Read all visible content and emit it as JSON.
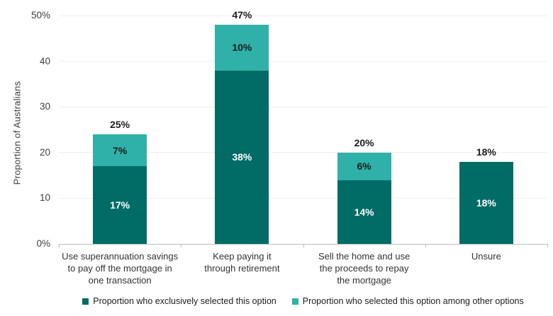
{
  "chart_data": {
    "type": "bar",
    "subtype": "stacked",
    "title": "",
    "xlabel": "",
    "ylabel": "Proportion of Australians",
    "ylim": [
      0,
      50
    ],
    "grid": "horizontal-faint",
    "legend_position": "bottom",
    "yticks": [
      {
        "value": 0,
        "label": "0%"
      },
      {
        "value": 10,
        "label": "10"
      },
      {
        "value": 20,
        "label": "20"
      },
      {
        "value": 30,
        "label": "30"
      },
      {
        "value": 40,
        "label": "40"
      },
      {
        "value": 50,
        "label": "50%"
      }
    ],
    "categories": [
      "Use superannuation savings\nto pay off the mortgage in\none transaction",
      "Keep paying it\nthrough retirement",
      "Sell the home and use\nthe proceeds to repay\nthe mortgage",
      "Unsure"
    ],
    "series": [
      {
        "name": "Proportion who exclusively selected this option",
        "color": "#016B66",
        "values": [
          17,
          38,
          14,
          18
        ],
        "labels": [
          "17%",
          "38%",
          "14%",
          "18%"
        ]
      },
      {
        "name": "Proportion who selected this option among other options",
        "color": "#2FB1A9",
        "values": [
          7,
          10,
          6,
          0
        ],
        "labels": [
          "7%",
          "10%",
          "6%",
          ""
        ]
      }
    ],
    "totals": [
      "25%",
      "47%",
      "20%",
      "18%"
    ],
    "colors": {
      "exclusive": "#016B66",
      "among": "#2FB1A9",
      "axis_line": "#bdbdbd",
      "gridline": "#f0efef",
      "label_dark": "#1d1d1b",
      "label_light": "#ffffff"
    }
  }
}
